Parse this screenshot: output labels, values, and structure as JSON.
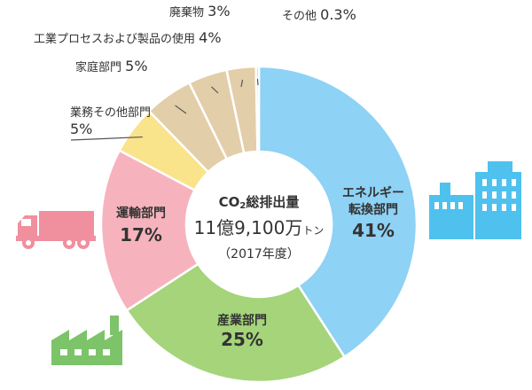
{
  "chart_data": {
    "type": "pie",
    "title": "",
    "center": {
      "line1_prefix": "CO",
      "line1_sub": "2",
      "line1_suffix": "総排出量",
      "line2_value": "11億9,100万",
      "line2_unit": "トン",
      "line3": "（2017年度）"
    },
    "slices": [
      {
        "label": "エネルギー転換部門",
        "label_lines": [
          "エネルギー",
          "転換部門"
        ],
        "value": 41,
        "value_text": "41%",
        "color": "#8ed2f5"
      },
      {
        "label": "産業部門",
        "label_lines": [
          "産業部門"
        ],
        "value": 25,
        "value_text": "25%",
        "color": "#a5d47a"
      },
      {
        "label": "運輸部門",
        "label_lines": [
          "運輸部門"
        ],
        "value": 17,
        "value_text": "17%",
        "color": "#f6b3bd"
      },
      {
        "label": "業務その他部門",
        "label_lines": [
          "業務その他部門"
        ],
        "value": 5,
        "value_text": "5%",
        "color": "#f9e38b"
      },
      {
        "label": "家庭部門",
        "label_lines": [
          "家庭部門"
        ],
        "value": 5,
        "value_text": "5%",
        "color": "#e3ceaa"
      },
      {
        "label": "工業プロセスおよび製品の使用",
        "label_lines": [
          "工業プロセスおよび製品の使用"
        ],
        "value": 4,
        "value_text": "4%",
        "color": "#e3ceaa"
      },
      {
        "label": "廃棄物",
        "label_lines": [
          "廃棄物"
        ],
        "value": 3,
        "value_text": "3%",
        "color": "#e3ceaa"
      },
      {
        "label": "その他",
        "label_lines": [
          "その他"
        ],
        "value": 0.3,
        "value_text": "0.3%",
        "color": "#e3ceaa"
      }
    ]
  },
  "icons": {
    "energy": {
      "name": "power-plant-icon",
      "color": "#4fc1ee"
    },
    "industry": {
      "name": "factory-icon",
      "color": "#7cc36a"
    },
    "transport": {
      "name": "truck-icon",
      "color": "#f08f9e"
    }
  }
}
